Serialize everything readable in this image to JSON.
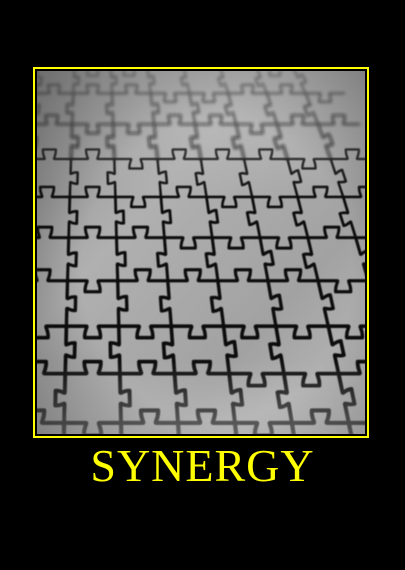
{
  "poster": {
    "title": "SYNERGY",
    "photo_subject": "puzzle-pieces-photo"
  },
  "colors": {
    "background": "#000000",
    "accent": "#ffff00",
    "puzzle_surface": "#a8a8a8",
    "puzzle_lines": "#111111"
  }
}
